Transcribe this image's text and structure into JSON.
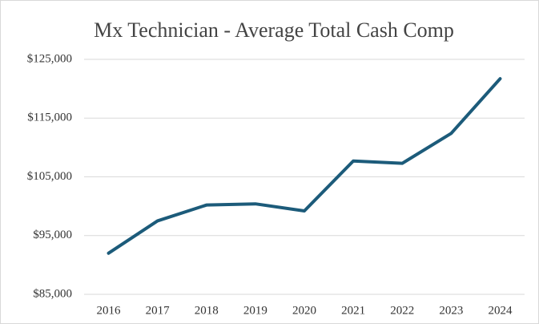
{
  "chart_data": {
    "type": "line",
    "title": "Mx Technician - Average Total Cash Comp",
    "categories": [
      "2016",
      "2017",
      "2018",
      "2019",
      "2020",
      "2021",
      "2022",
      "2023",
      "2024"
    ],
    "series": [
      {
        "name": "Average Total Cash Comp",
        "color": "#1c5b7a",
        "values": [
          92000,
          97500,
          100200,
          100400,
          99200,
          107700,
          107300,
          112400,
          121700
        ]
      }
    ],
    "ylim": [
      85000,
      125000
    ],
    "yticks": [
      {
        "value": 85000,
        "label": "$85,000"
      },
      {
        "value": 95000,
        "label": "$95,000"
      },
      {
        "value": 105000,
        "label": "$105,000"
      },
      {
        "value": 115000,
        "label": "$115,000"
      },
      {
        "value": 125000,
        "label": "$125,000"
      }
    ],
    "grid": true
  }
}
